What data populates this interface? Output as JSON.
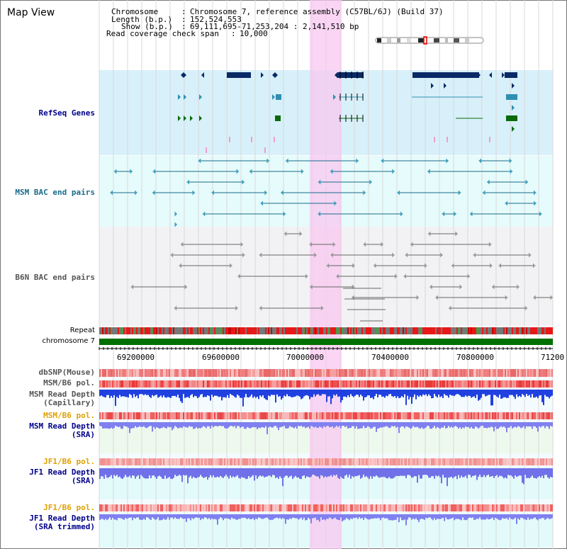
{
  "header": {
    "title": "Map View",
    "chromosome_key": "Chromosome",
    "chromosome_value": "Chromosome 7, reference assembly (C57BL/6J) (Build 37)",
    "length_key": "Length (b.p.)",
    "length_value": "152,524,553",
    "show_key": "Show (b.p.)",
    "show_value": "69,111,695-71,253,204 : 2,141,510 bp",
    "coverage_key": "Read coverage check span",
    "coverage_value": "10,000"
  },
  "tracks": {
    "refseq": "RefSeq Genes",
    "msm_bac": "MSM BAC end pairs",
    "b6n_bac": "B6N BAC end pairs",
    "repeat": "Repeat",
    "chromosome": "chromosome 7",
    "dbsnp": "dbSNP(Mouse)",
    "msm_b6_pol": "MSM/B6 pol.",
    "msm_read_depth_cap_1": "MSM Read Depth",
    "msm_read_depth_cap_2": "(Capillary)",
    "msm_b6_pol_sra": "MSM/B6 pol.",
    "msm_read_depth_sra_1": "MSM Read Depth",
    "msm_read_depth_sra_2": "(SRA)",
    "jf1_b6_pol": "JF1/B6 pol.",
    "jf1_read_depth_1": "JF1 Read Depth",
    "jf1_read_depth_2": "(SRA)",
    "jf1_b6_pol_trim": "JF1/B6 pol.",
    "jf1_trim_1": "JF1 Read Depth",
    "jf1_trim_2": "(SRA trimmed)"
  },
  "axis": {
    "ticks": [
      "69200000",
      "69600000",
      "70000000",
      "70400000",
      "70800000",
      "71200"
    ]
  },
  "colors": {
    "highlight": "#f8c8f0",
    "refseq_bg": "#d8f0fa",
    "msm_bg": "#e6fbfb",
    "b6n_bg": "#f2f2f4",
    "gene_navy": "#0a2a66",
    "gene_teal": "#2f8fb0",
    "gene_green": "#0a6a0a",
    "chrom_green": "#007000"
  }
}
